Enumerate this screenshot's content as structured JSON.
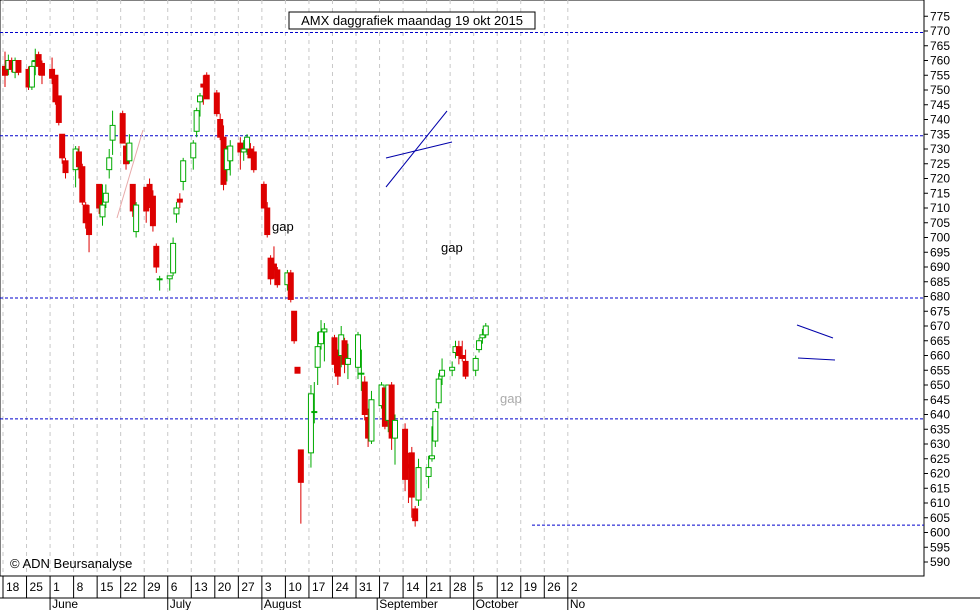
{
  "chart_data": {
    "type": "candlestick",
    "title": "AMX daggrafiek maandag 19 okt 2015",
    "watermark": "© ADN Beursanalyse",
    "colors": {
      "up": "#00aa00",
      "down": "#dd0000",
      "up_fill": "#ffffff",
      "grid": "#c8c8c8",
      "level": "#0000cc",
      "trend": "#0000aa",
      "axis": "#000000"
    },
    "ylim": [
      587,
      778
    ],
    "y_ticks": [
      590,
      595,
      600,
      605,
      610,
      615,
      620,
      625,
      630,
      635,
      640,
      645,
      650,
      655,
      660,
      665,
      670,
      675,
      680,
      685,
      690,
      695,
      700,
      705,
      710,
      715,
      720,
      725,
      730,
      735,
      740,
      745,
      750,
      755,
      760,
      765,
      770,
      775
    ],
    "x_tick_labels": [
      "18",
      "25",
      "1",
      "8",
      "15",
      "22",
      "29",
      "6",
      "13",
      "20",
      "27",
      "3",
      "10",
      "17",
      "24",
      "31",
      "7",
      "14",
      "21",
      "28",
      "5",
      "12",
      "19",
      "26",
      "2"
    ],
    "month_labels": [
      "June",
      "July",
      "August",
      "September",
      "October",
      "No"
    ],
    "horizontal_levels": [
      769.5,
      734.5,
      679.5,
      638.5,
      602.5
    ],
    "annotations": [
      {
        "text": "gap",
        "color": "#000000"
      },
      {
        "text": "gap",
        "color": "#000000"
      },
      {
        "text": "gap",
        "color": "#aaaaaa"
      }
    ],
    "trend_lines": [
      {
        "from": [
          "27",
          716
        ],
        "to": [
          "3",
          741
        ]
      },
      {
        "from": [
          "27",
          723
        ],
        "to": [
          "3",
          723
        ]
      },
      {
        "from": [
          "12",
          670
        ],
        "to": [
          "12",
          656
        ]
      },
      {
        "from": [
          "12",
          650
        ],
        "to": [
          "12",
          649
        ]
      }
    ],
    "candles": [
      {
        "o": 758,
        "h": 763,
        "l": 751,
        "c": 755
      },
      {
        "o": 757,
        "h": 762,
        "l": 755,
        "c": 760
      },
      {
        "o": 760,
        "h": 761,
        "l": 756,
        "c": 757
      },
      {
        "o": 756,
        "h": 761,
        "l": 754,
        "c": 760
      },
      {
        "o": 760,
        "h": 760,
        "l": 755,
        "c": 756
      },
      {
        "o": 757,
        "h": 758,
        "l": 750,
        "c": 751
      },
      {
        "o": 751,
        "h": 760,
        "l": 750,
        "c": 758
      },
      {
        "o": 760,
        "h": 764,
        "l": 755,
        "c": 760
      },
      {
        "o": 762,
        "h": 763,
        "l": 755,
        "c": 758
      },
      {
        "o": 759,
        "h": 760,
        "l": 752,
        "c": 755
      },
      {
        "o": 757,
        "h": 761,
        "l": 752,
        "c": 754
      },
      {
        "o": 755,
        "h": 755,
        "l": 745,
        "c": 746
      },
      {
        "o": 748,
        "h": 748,
        "l": 738,
        "c": 739
      },
      {
        "o": 735,
        "h": 735,
        "l": 725,
        "c": 727
      },
      {
        "o": 726,
        "h": 727,
        "l": 720,
        "c": 722
      },
      {
        "o": 723,
        "h": 731,
        "l": 717,
        "c": 730
      },
      {
        "o": 729,
        "h": 731,
        "l": 720,
        "c": 724
      },
      {
        "o": 724,
        "h": 725,
        "l": 711,
        "c": 712
      },
      {
        "o": 711,
        "h": 712,
        "l": 703,
        "c": 705
      },
      {
        "o": 708,
        "h": 711,
        "l": 695,
        "c": 701
      },
      {
        "o": 718,
        "h": 718,
        "l": 708,
        "c": 710
      },
      {
        "o": 707,
        "h": 718,
        "l": 704,
        "c": 711
      },
      {
        "o": 712,
        "h": 718,
        "l": 710,
        "c": 715
      },
      {
        "o": 723,
        "h": 730,
        "l": 720,
        "c": 727
      },
      {
        "o": 733,
        "h": 743,
        "l": 728,
        "c": 738
      },
      {
        "o": 742,
        "h": 743,
        "l": 732,
        "c": 732
      },
      {
        "o": 731,
        "h": 732,
        "l": 723,
        "c": 725
      },
      {
        "o": 726,
        "h": 735,
        "l": 725,
        "c": 732
      },
      {
        "o": 718,
        "h": 718,
        "l": 707,
        "c": 709
      },
      {
        "o": 702,
        "h": 712,
        "l": 700,
        "c": 711
      },
      {
        "o": 717,
        "h": 717,
        "l": 705,
        "c": 709
      },
      {
        "o": 718,
        "h": 720,
        "l": 710,
        "c": 712
      },
      {
        "o": 714,
        "h": 716,
        "l": 702,
        "c": 704
      },
      {
        "o": 697,
        "h": 698,
        "l": 688,
        "c": 690
      },
      {
        "o": 686,
        "h": 687,
        "l": 682,
        "c": 686
      },
      {
        "o": 686,
        "h": 687,
        "l": 682,
        "c": 687
      },
      {
        "o": 688,
        "h": 700,
        "l": 687,
        "c": 698
      },
      {
        "o": 708,
        "h": 712,
        "l": 705,
        "c": 710
      },
      {
        "o": 713,
        "h": 715,
        "l": 710,
        "c": 712
      },
      {
        "o": 719,
        "h": 727,
        "l": 716,
        "c": 726
      },
      {
        "o": 727,
        "h": 733,
        "l": 723,
        "c": 732
      },
      {
        "o": 736,
        "h": 744,
        "l": 734,
        "c": 743
      },
      {
        "o": 746,
        "h": 749,
        "l": 741,
        "c": 748
      },
      {
        "o": 752,
        "h": 755,
        "l": 745,
        "c": 751
      },
      {
        "o": 755,
        "h": 756,
        "l": 747,
        "c": 747
      },
      {
        "o": 749,
        "h": 750,
        "l": 741,
        "c": 742
      },
      {
        "o": 740,
        "h": 742,
        "l": 733,
        "c": 734
      },
      {
        "o": 734,
        "h": 738,
        "l": 716,
        "c": 718
      },
      {
        "o": 723,
        "h": 731,
        "l": 719,
        "c": 730
      },
      {
        "o": 726,
        "h": 733,
        "l": 721,
        "c": 731
      },
      {
        "o": 732,
        "h": 734,
        "l": 723,
        "c": 729
      },
      {
        "o": 729,
        "h": 733,
        "l": 726,
        "c": 730
      },
      {
        "o": 730,
        "h": 735,
        "l": 728,
        "c": 734
      },
      {
        "o": 730,
        "h": 732,
        "l": 727,
        "c": 727
      },
      {
        "o": 729,
        "h": 731,
        "l": 722,
        "c": 723
      },
      {
        "o": 718,
        "h": 719,
        "l": 710,
        "c": 710
      },
      {
        "o": 710,
        "h": 712,
        "l": 700,
        "c": 701
      },
      {
        "o": 693,
        "h": 694,
        "l": 684,
        "c": 686
      },
      {
        "o": 691,
        "h": 697,
        "l": 686,
        "c": 689
      },
      {
        "o": 689,
        "h": 690,
        "l": 683,
        "c": 684
      },
      {
        "o": 684,
        "h": 689,
        "l": 682,
        "c": 688
      },
      {
        "o": 688,
        "h": 689,
        "l": 678,
        "c": 679
      },
      {
        "o": 675,
        "h": 675,
        "l": 664,
        "c": 665
      },
      {
        "o": 656,
        "h": 656,
        "l": 654,
        "c": 654
      },
      {
        "o": 628,
        "h": 628,
        "l": 603,
        "c": 617
      },
      {
        "o": 627,
        "h": 650,
        "l": 622,
        "c": 647
      },
      {
        "o": 641,
        "h": 651,
        "l": 637,
        "c": 641
      },
      {
        "o": 656,
        "h": 668,
        "l": 650,
        "c": 663
      },
      {
        "o": 664,
        "h": 672,
        "l": 662,
        "c": 668
      },
      {
        "o": 668,
        "h": 671,
        "l": 658,
        "c": 669
      },
      {
        "o": 666,
        "h": 667,
        "l": 654,
        "c": 657
      },
      {
        "o": 661,
        "h": 662,
        "l": 650,
        "c": 653
      },
      {
        "o": 660,
        "h": 670,
        "l": 656,
        "c": 667
      },
      {
        "o": 665,
        "h": 666,
        "l": 654,
        "c": 657
      },
      {
        "o": 657,
        "h": 664,
        "l": 652,
        "c": 659
      },
      {
        "o": 656,
        "h": 668,
        "l": 652,
        "c": 667
      },
      {
        "o": 654,
        "h": 662,
        "l": 648,
        "c": 654
      },
      {
        "o": 651,
        "h": 653,
        "l": 638,
        "c": 640
      },
      {
        "o": 639,
        "h": 642,
        "l": 629,
        "c": 632
      },
      {
        "o": 631,
        "h": 648,
        "l": 630,
        "c": 645
      },
      {
        "o": 643,
        "h": 651,
        "l": 642,
        "c": 650
      },
      {
        "o": 649,
        "h": 649,
        "l": 635,
        "c": 636
      },
      {
        "o": 638,
        "h": 650,
        "l": 634,
        "c": 650
      },
      {
        "o": 650,
        "h": 651,
        "l": 628,
        "c": 632
      },
      {
        "o": 632,
        "h": 640,
        "l": 623,
        "c": 638
      },
      {
        "o": 635,
        "h": 637,
        "l": 614,
        "c": 618
      },
      {
        "o": 623,
        "h": 627,
        "l": 610,
        "c": 622
      },
      {
        "o": 627,
        "h": 629,
        "l": 605,
        "c": 612
      },
      {
        "o": 608,
        "h": 609,
        "l": 602,
        "c": 604
      },
      {
        "o": 611,
        "h": 625,
        "l": 609,
        "c": 622
      },
      {
        "o": 619,
        "h": 626,
        "l": 615,
        "c": 622
      },
      {
        "o": 625,
        "h": 636,
        "l": 624,
        "c": 626
      },
      {
        "o": 631,
        "h": 642,
        "l": 629,
        "c": 641
      },
      {
        "o": 644,
        "h": 654,
        "l": 642,
        "c": 652
      },
      {
        "o": 653,
        "h": 659,
        "l": 650,
        "c": 655
      },
      {
        "o": 655,
        "h": 658,
        "l": 653,
        "c": 656
      },
      {
        "o": 661,
        "h": 665,
        "l": 659,
        "c": 663
      },
      {
        "o": 663,
        "h": 665,
        "l": 657,
        "c": 660
      },
      {
        "o": 660,
        "h": 665,
        "l": 658,
        "c": 659
      },
      {
        "o": 658,
        "h": 662,
        "l": 652,
        "c": 653
      },
      {
        "o": 655,
        "h": 660,
        "l": 653,
        "c": 659
      },
      {
        "o": 662,
        "h": 666,
        "l": 661,
        "c": 665
      },
      {
        "o": 666,
        "h": 669,
        "l": 664,
        "c": 667
      },
      {
        "o": 667,
        "h": 671,
        "l": 666,
        "c": 670
      }
    ]
  }
}
